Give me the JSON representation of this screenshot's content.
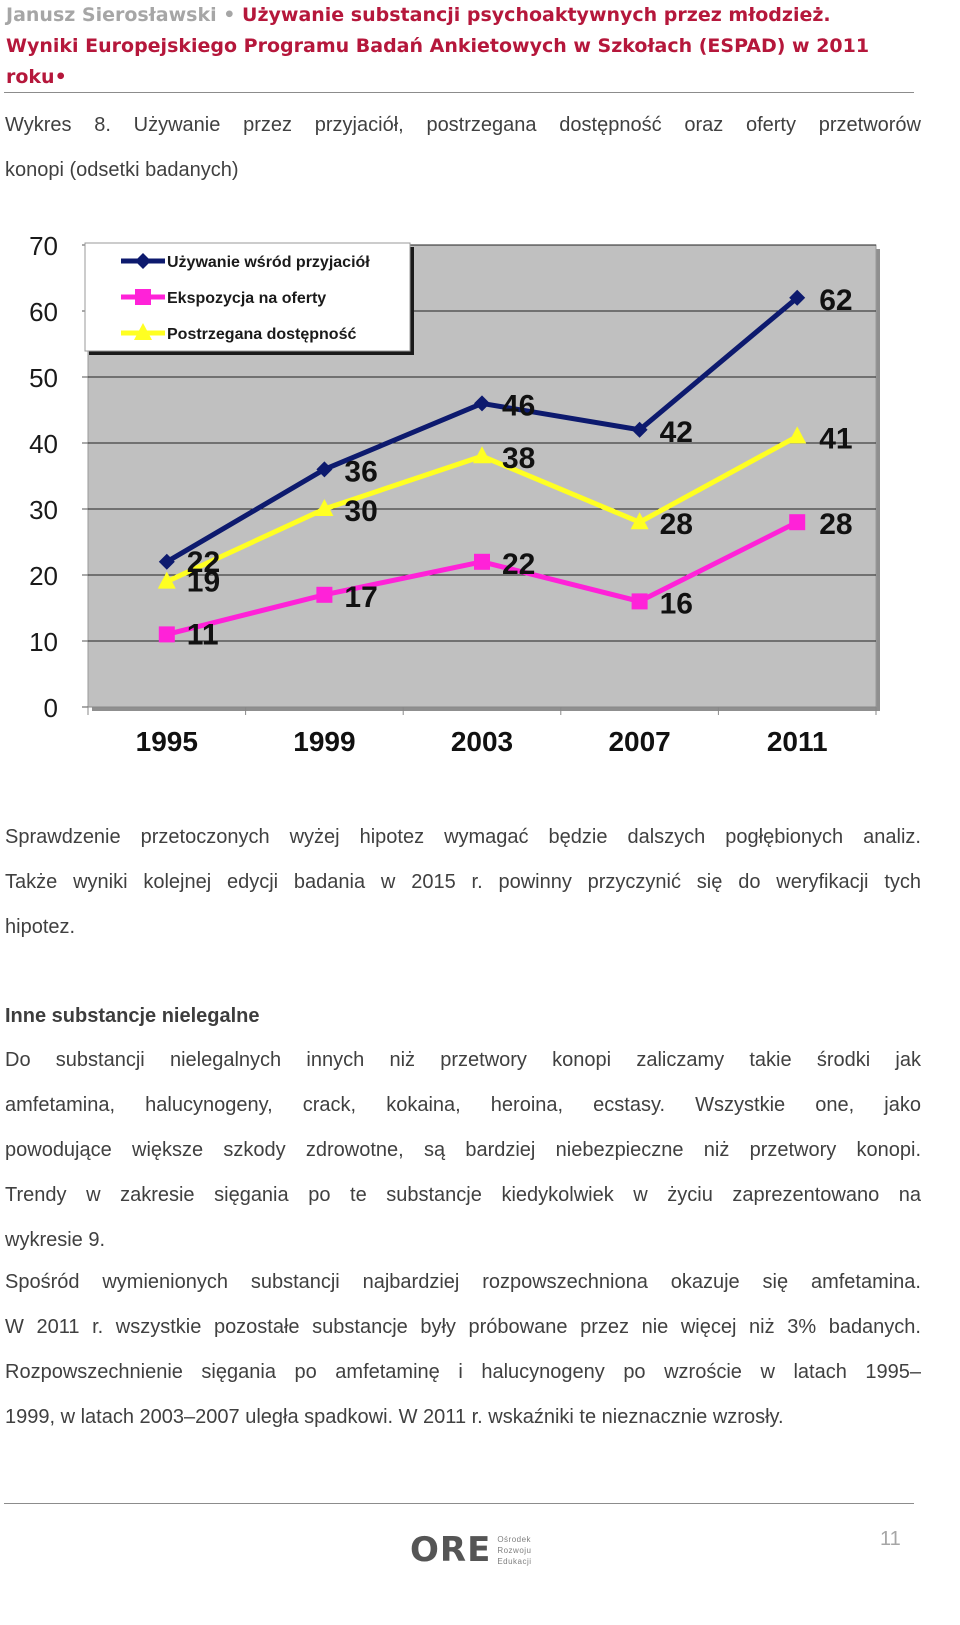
{
  "header": {
    "author": "Janusz Sierosławski",
    "title_line1": "Używanie substancji psychoaktywnych przez młodzież.",
    "title_line2": "Wyniki Europejskiego Programu Badań Ankietowych w Szkołach (ESPAD) w 2011 roku"
  },
  "caption": {
    "line1": "Wykres 8. Używanie przez przyjaciół, postrzegana dostępność oraz oferty przetworów",
    "line2": "konopi (odsetki badanych)"
  },
  "chart_data": {
    "type": "line",
    "x": [
      "1995",
      "1999",
      "2003",
      "2007",
      "2011"
    ],
    "ylim": [
      0,
      70
    ],
    "yticks": [
      0,
      10,
      20,
      30,
      40,
      50,
      60,
      70
    ],
    "grid": true,
    "legend_position": "top-left",
    "series": [
      {
        "name": "Używanie wśród przyjaciół",
        "values": [
          22,
          36,
          46,
          42,
          62
        ],
        "color": "#0d1a6e",
        "marker": "diamond"
      },
      {
        "name": "Ekspozycja na oferty",
        "values": [
          11,
          17,
          22,
          16,
          28
        ],
        "color": "#ff22d8",
        "marker": "square"
      },
      {
        "name": "Postrzegana dostępność",
        "values": [
          19,
          30,
          38,
          28,
          41
        ],
        "color": "#ffff22",
        "marker": "triangle"
      }
    ],
    "plot_background": "#c0c0c0"
  },
  "paragraph1": {
    "line1": "Sprawdzenie przetoczonych wyżej hipotez wymagać będzie dalszych pogłębionych analiz.",
    "line2": "Także wyniki kolejnej edycji badania w 2015 r. powinny przyczynić się do weryfikacji tych",
    "line3": "hipotez."
  },
  "section_title": "Inne substancje nielegalne",
  "paragraph2": {
    "line1": "Do substancji nielegalnych innych niż przetwory konopi zaliczamy takie środki jak",
    "line2": "amfetamina, halucynogeny, crack, kokaina, heroina, ecstasy. Wszystkie one, jako",
    "line3": "powodujące większe szkody zdrowotne, są bardziej niebezpieczne niż przetwory konopi.",
    "line4": "Trendy w zakresie sięgania po te substancje kiedykolwiek w życiu zaprezentowano na",
    "line5": "wykresie 9."
  },
  "paragraph3": {
    "line1": "Spośród wymienionych substancji najbardziej rozpowszechniona okazuje się amfetamina.",
    "line2": "W 2011 r. wszystkie pozostałe substancje były próbowane przez nie więcej niż 3% badanych.",
    "line3": "Rozpowszechnienie sięgania po amfetaminę i halucynogeny po wzroście w latach 1995–",
    "line4": "1999, w latach 2003–2007 uległa spadkowi. W 2011 r. wskaźniki te nieznacznie wzrosły."
  },
  "footer": {
    "logo_mark": "ORE",
    "logo_line1": "Ośrodek",
    "logo_line2": "Rozwoju",
    "logo_line3": "Edukacji",
    "page_number": "11"
  }
}
